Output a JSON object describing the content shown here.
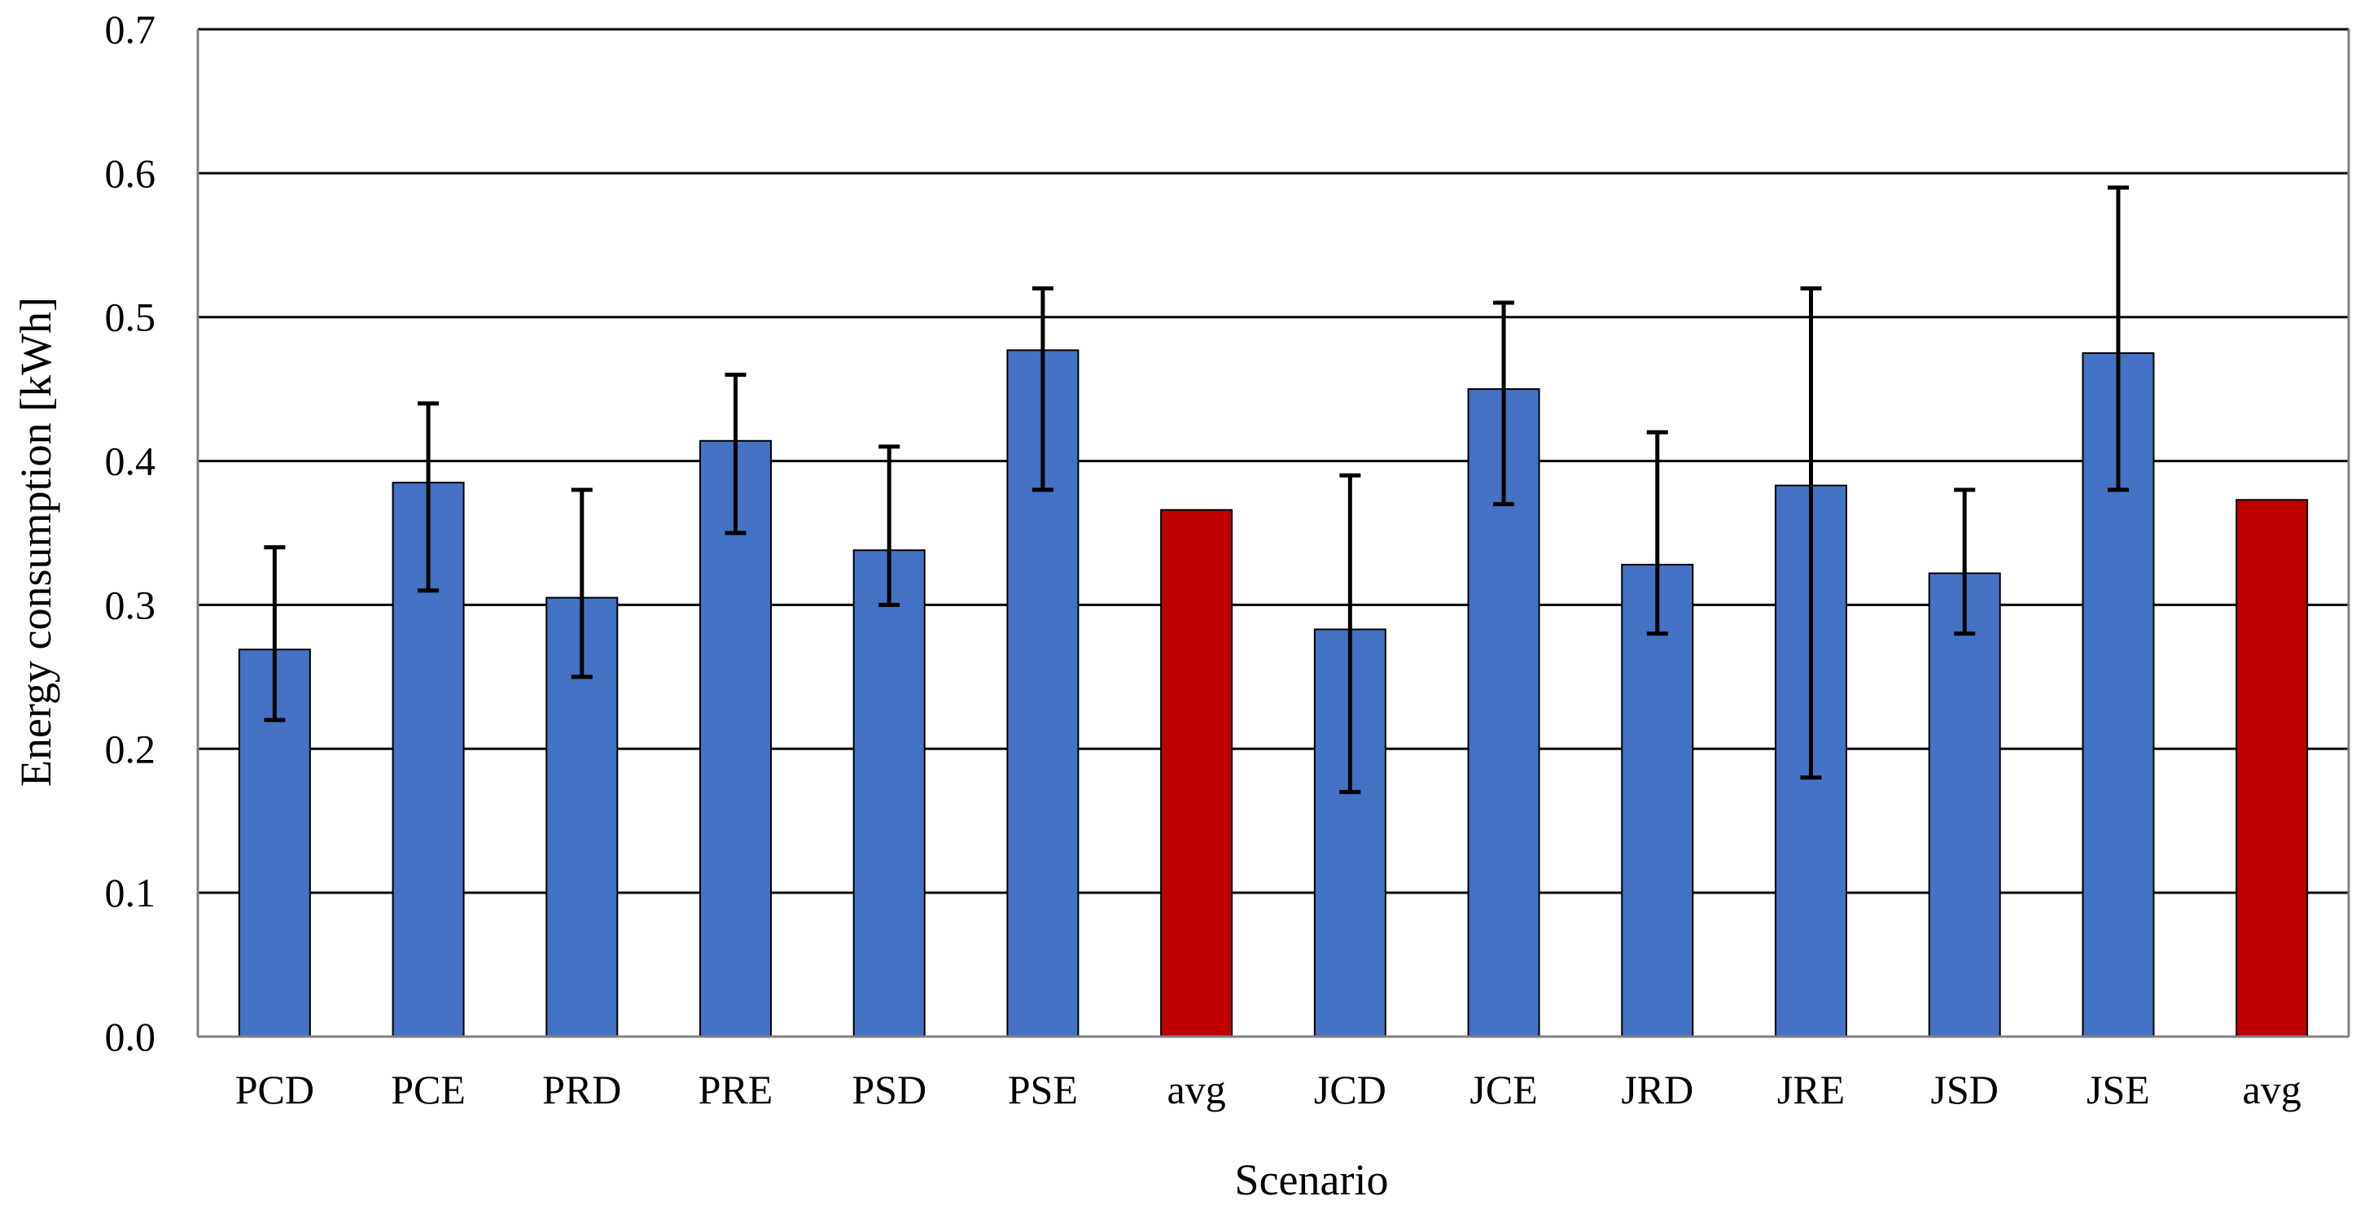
{
  "chart_data": {
    "type": "bar",
    "title": "",
    "xlabel": "Scenario",
    "ylabel": "Energy consumption [kWh]",
    "ylim": [
      0,
      0.7
    ],
    "yticks": [
      "0.0",
      "0.1",
      "0.2",
      "0.3",
      "0.4",
      "0.5",
      "0.6",
      "0.7"
    ],
    "ytick_values": [
      0,
      0.1,
      0.2,
      0.3,
      0.4,
      0.5,
      0.6,
      0.7
    ],
    "grid": true,
    "legend": "none",
    "categories": [
      "PCD",
      "PCE",
      "PRD",
      "PRE",
      "PSD",
      "PSE",
      "avg",
      "JCD",
      "JCE",
      "JRD",
      "JRE",
      "JSD",
      "JSE",
      "avg"
    ],
    "values": [
      0.269,
      0.385,
      0.305,
      0.414,
      0.338,
      0.477,
      0.366,
      0.283,
      0.45,
      0.328,
      0.383,
      0.322,
      0.475,
      0.373
    ],
    "error_low": [
      0.22,
      0.31,
      0.25,
      0.35,
      0.3,
      0.38,
      null,
      0.17,
      0.37,
      0.28,
      0.18,
      0.28,
      0.38,
      null
    ],
    "error_high": [
      0.34,
      0.44,
      0.38,
      0.46,
      0.41,
      0.52,
      null,
      0.39,
      0.51,
      0.42,
      0.52,
      0.38,
      0.59,
      null
    ],
    "bar_colors": [
      "#4472C4",
      "#4472C4",
      "#4472C4",
      "#4472C4",
      "#4472C4",
      "#4472C4",
      "#C00000",
      "#4472C4",
      "#4472C4",
      "#4472C4",
      "#4472C4",
      "#4472C4",
      "#4472C4",
      "#C00000"
    ]
  },
  "colors": {
    "grid": "#000000",
    "axis": "#808080",
    "bar_outline": "#000000",
    "error_bar": "#000000"
  }
}
